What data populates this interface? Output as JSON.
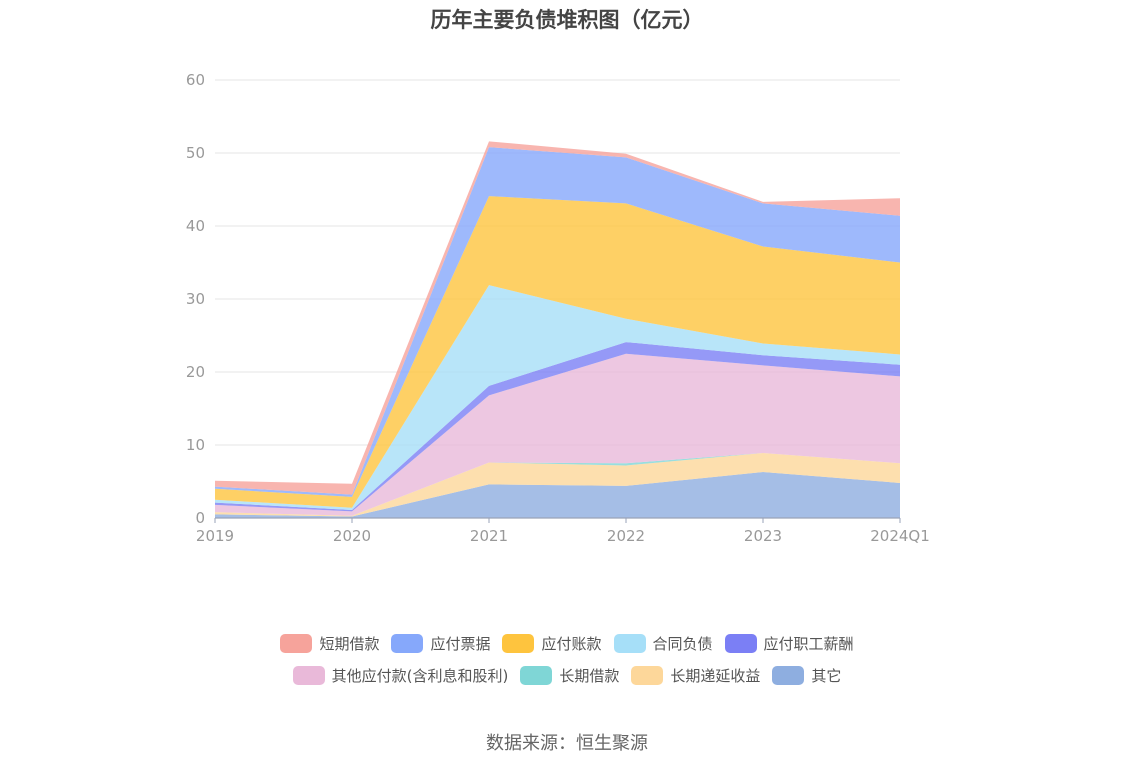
{
  "chart_data": {
    "type": "area",
    "stacked": true,
    "title": "历年主要负债堆积图（亿元）",
    "categories": [
      "2019",
      "2020",
      "2021",
      "2022",
      "2023",
      "2024Q1"
    ],
    "ylim": [
      0,
      60
    ],
    "yticks": [
      0,
      10,
      20,
      30,
      40,
      50,
      60
    ],
    "grid": true,
    "legend_position": "bottom",
    "series": [
      {
        "name": "其它",
        "color": "#8eaee0",
        "values": [
          0.5,
          0.2,
          4.6,
          4.4,
          6.3,
          4.8
        ]
      },
      {
        "name": "长期递延收益",
        "color": "#fdd79a",
        "values": [
          0.3,
          0.1,
          3.0,
          2.8,
          2.6,
          2.7
        ]
      },
      {
        "name": "长期借款",
        "color": "#7fd6d6",
        "values": [
          0.0,
          0.0,
          0.0,
          0.3,
          0.0,
          0.0
        ]
      },
      {
        "name": "其他应付款(含利息和股利)",
        "color": "#e9b9d9",
        "values": [
          1.0,
          0.6,
          9.2,
          15.0,
          12.0,
          11.9
        ]
      },
      {
        "name": "应付职工薪酬",
        "color": "#7b7ff5",
        "values": [
          0.3,
          0.2,
          1.3,
          1.6,
          1.4,
          1.6
        ]
      },
      {
        "name": "合同负债",
        "color": "#a6dff8",
        "values": [
          0.4,
          0.3,
          13.8,
          3.2,
          1.6,
          1.4
        ]
      },
      {
        "name": "应付账款",
        "color": "#fec43e",
        "values": [
          1.5,
          1.5,
          12.2,
          15.8,
          13.3,
          12.6
        ]
      },
      {
        "name": "应付票据",
        "color": "#86a8fb",
        "values": [
          0.3,
          0.3,
          6.7,
          6.3,
          5.9,
          6.4
        ]
      },
      {
        "name": "短期借款",
        "color": "#f6a39b",
        "values": [
          0.8,
          1.5,
          0.8,
          0.5,
          0.2,
          2.4
        ]
      }
    ],
    "legend_order": [
      "短期借款",
      "应付票据",
      "应付账款",
      "合同负债",
      "应付职工薪酬",
      "其他应付款(含利息和股利)",
      "长期借款",
      "长期递延收益",
      "其它"
    ]
  },
  "source": "数据来源：恒生聚源"
}
